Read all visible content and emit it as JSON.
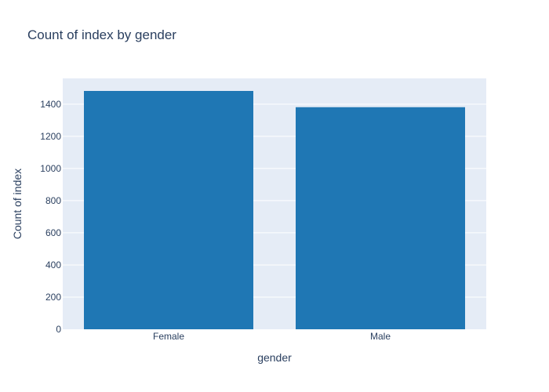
{
  "chart_data": {
    "type": "bar",
    "title": "Count of index by gender",
    "xlabel": "gender",
    "ylabel": "Count of index",
    "categories": [
      "Female",
      "Male"
    ],
    "values": [
      1482,
      1381
    ],
    "ylim": [
      0,
      1560
    ],
    "yticks": [
      0,
      200,
      400,
      600,
      800,
      1000,
      1200,
      1400
    ],
    "grid": true,
    "legend": "none",
    "colors": {
      "bar": "#1f77b4",
      "plot_background": "#e5ecf6",
      "gridline": "#ffffff",
      "text": "#2a3f5f"
    }
  }
}
